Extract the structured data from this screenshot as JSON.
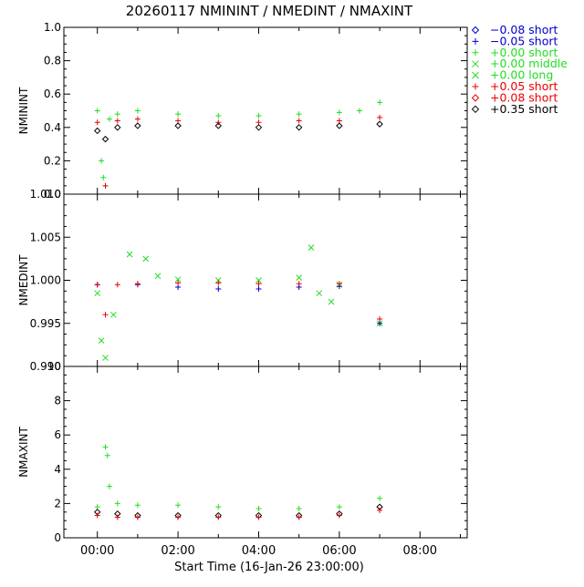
{
  "title": "20260117 NMININT / NMEDINT / NMAXINT",
  "xlabel": "Start Time (16-Jan-26 23:00:00)",
  "x_ticks": [
    "00:00",
    "02:00",
    "04:00",
    "06:00",
    "08:00"
  ],
  "legend": [
    {
      "symbol": "diamond",
      "label": "−0.08 short",
      "color": "#0000cc"
    },
    {
      "symbol": "plus",
      "label": "−0.05 short",
      "color": "#0000cc"
    },
    {
      "symbol": "plus",
      "label": "+0.00 short",
      "color": "#22dd22"
    },
    {
      "symbol": "cross",
      "label": "+0.00 middle",
      "color": "#22dd22"
    },
    {
      "symbol": "cross",
      "label": "+0.00 long",
      "color": "#22dd22"
    },
    {
      "symbol": "plus",
      "label": "+0.05 short",
      "color": "#ee0000"
    },
    {
      "symbol": "diamond",
      "label": "+0.08 short",
      "color": "#ee0000"
    },
    {
      "symbol": "diamond",
      "label": "+0.35 short",
      "color": "#000000"
    }
  ],
  "chart_data": [
    {
      "type": "scatter",
      "ylabel": "NMININT",
      "ylim": [
        0.0,
        1.0
      ],
      "y_ticks": [
        "0.0",
        "0.2",
        "0.4",
        "0.6",
        "0.8",
        "1.0"
      ],
      "xlim_hours": [
        -0.83,
        9.17
      ],
      "series": [
        {
          "name": "+0.00 short",
          "color": "#22dd22",
          "symbol": "plus",
          "x": [
            0.0,
            0.1,
            0.15,
            0.2,
            0.3,
            0.5,
            1.0,
            2.0,
            3.0,
            4.0,
            5.0,
            6.0,
            6.5,
            7.0
          ],
          "y": [
            0.5,
            0.2,
            0.1,
            0.05,
            0.45,
            0.48,
            0.5,
            0.48,
            0.47,
            0.47,
            0.48,
            0.49,
            0.5,
            0.55
          ]
        },
        {
          "name": "+0.05 short",
          "color": "#ee0000",
          "symbol": "plus",
          "x": [
            0.0,
            0.2,
            0.5,
            1.0,
            2.0,
            3.0,
            4.0,
            5.0,
            6.0,
            7.0
          ],
          "y": [
            0.43,
            0.05,
            0.44,
            0.45,
            0.44,
            0.43,
            0.43,
            0.44,
            0.44,
            0.46
          ]
        },
        {
          "name": "+0.35 short",
          "color": "#000000",
          "symbol": "diamond",
          "x": [
            0.0,
            0.2,
            0.5,
            1.0,
            2.0,
            3.0,
            4.0,
            5.0,
            6.0,
            7.0
          ],
          "y": [
            0.38,
            0.33,
            0.4,
            0.41,
            0.41,
            0.41,
            0.4,
            0.4,
            0.41,
            0.42
          ]
        }
      ]
    },
    {
      "type": "scatter",
      "ylabel": "NMEDINT",
      "ylim": [
        0.99,
        1.01
      ],
      "y_ticks": [
        "0.990",
        "0.995",
        "1.000",
        "1.005",
        "1.010"
      ],
      "xlim_hours": [
        -0.83,
        9.17
      ],
      "series": [
        {
          "name": "+0.00 long",
          "color": "#22dd22",
          "symbol": "cross",
          "x": [
            0.0,
            0.1,
            0.2,
            0.4,
            0.8,
            1.2,
            1.5,
            2.0,
            3.0,
            4.0,
            5.0,
            5.3,
            5.5,
            5.8,
            6.0,
            7.0
          ],
          "y": [
            0.9985,
            0.993,
            0.991,
            0.996,
            1.003,
            1.0025,
            1.0005,
            1.0001,
            1.0,
            1.0,
            1.0003,
            1.0038,
            0.9985,
            0.9975,
            0.9995,
            0.995
          ]
        },
        {
          "name": "-0.05 short",
          "color": "#0000cc",
          "symbol": "plus",
          "x": [
            0.0,
            1.0,
            2.0,
            3.0,
            4.0,
            5.0,
            6.0,
            7.0
          ],
          "y": [
            0.9995,
            0.9995,
            0.9992,
            0.999,
            0.999,
            0.9992,
            0.9993,
            0.995
          ]
        },
        {
          "name": "+0.05 short",
          "color": "#ee0000",
          "symbol": "plus",
          "x": [
            0.0,
            0.2,
            0.5,
            1.0,
            2.0,
            3.0,
            4.0,
            5.0,
            6.0,
            7.0
          ],
          "y": [
            0.9995,
            0.996,
            0.9995,
            0.9996,
            0.9997,
            0.9997,
            0.9996,
            0.9996,
            0.9996,
            0.9955
          ]
        }
      ]
    },
    {
      "type": "scatter",
      "ylabel": "NMAXINT",
      "ylim": [
        0,
        10
      ],
      "y_ticks": [
        "0",
        "2",
        "4",
        "6",
        "8",
        "10"
      ],
      "xlim_hours": [
        -0.83,
        9.17
      ],
      "series": [
        {
          "name": "+0.00 short",
          "color": "#22dd22",
          "symbol": "plus",
          "x": [
            0.0,
            0.2,
            0.25,
            0.3,
            0.5,
            1.0,
            2.0,
            3.0,
            4.0,
            5.0,
            6.0,
            7.0
          ],
          "y": [
            1.8,
            5.3,
            4.8,
            3.0,
            2.0,
            1.9,
            1.9,
            1.8,
            1.7,
            1.7,
            1.8,
            2.3
          ]
        },
        {
          "name": "+0.35 short",
          "color": "#000000",
          "symbol": "diamond",
          "x": [
            0.0,
            0.5,
            1.0,
            2.0,
            3.0,
            4.0,
            5.0,
            6.0,
            7.0
          ],
          "y": [
            1.5,
            1.4,
            1.3,
            1.3,
            1.3,
            1.3,
            1.3,
            1.4,
            1.8
          ]
        },
        {
          "name": "+0.05 short",
          "color": "#ee0000",
          "symbol": "plus",
          "x": [
            0.0,
            0.5,
            1.0,
            2.0,
            3.0,
            4.0,
            5.0,
            6.0,
            7.0
          ],
          "y": [
            1.3,
            1.2,
            1.2,
            1.2,
            1.2,
            1.2,
            1.2,
            1.3,
            1.6
          ]
        }
      ]
    }
  ]
}
